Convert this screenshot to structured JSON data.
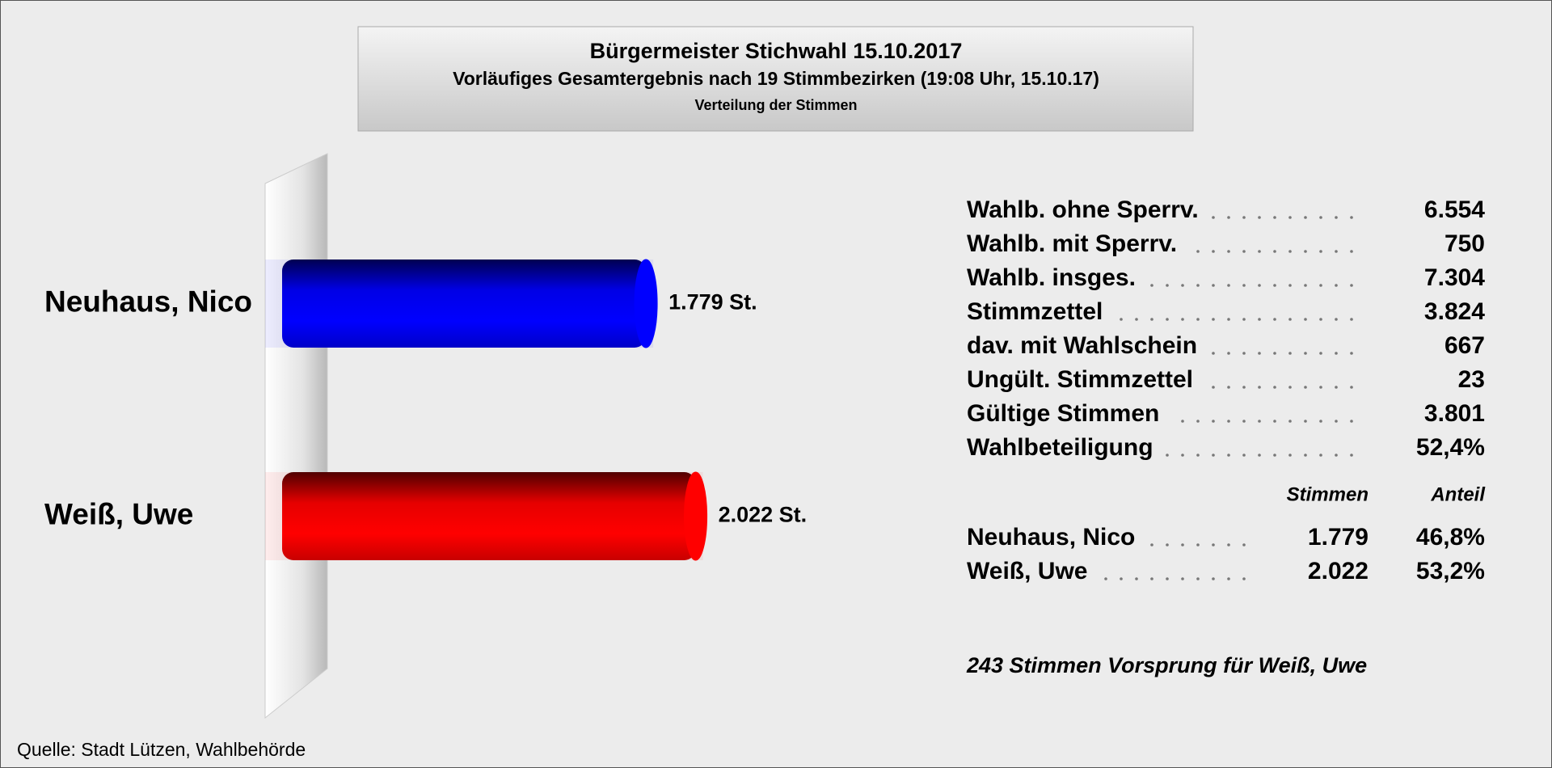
{
  "chart_data": {
    "type": "bar",
    "orientation": "horizontal",
    "title": "Bürgermeister Stichwahl 15.10.2017",
    "subtitle": "Vorläufiges Gesamtergebnis nach 19 Stimmbezirken (19:08 Uhr, 15.10.17)",
    "caption": "Verteilung der Stimmen",
    "categories": [
      "Neuhaus, Nico",
      "Weiß, Uwe"
    ],
    "values": [
      1779,
      2022
    ],
    "value_labels": [
      "1.779 St.",
      "2.022 St."
    ],
    "colors": [
      "#0000ff",
      "#ff0000"
    ]
  },
  "stats": {
    "rows": [
      {
        "label": "Wahlb. ohne Sperrv.",
        "value": "6.554"
      },
      {
        "label": "Wahlb. mit Sperrv.",
        "value": "750"
      },
      {
        "label": "Wahlb. insges.",
        "value": "7.304"
      },
      {
        "label": "Stimmzettel",
        "value": "3.824"
      },
      {
        "label": "dav. mit Wahlschein",
        "value": "667"
      },
      {
        "label": "Ungült. Stimmzettel",
        "value": "23"
      },
      {
        "label": "Gültige Stimmen",
        "value": "3.801"
      },
      {
        "label": "Wahlbeteiligung",
        "value": "52,4%"
      }
    ]
  },
  "results": {
    "headers": [
      "Stimmen",
      "Anteil"
    ],
    "rows": [
      {
        "name": "Neuhaus, Nico",
        "votes": "1.779",
        "share": "46,8%"
      },
      {
        "name": "Weiß, Uwe",
        "votes": "2.022",
        "share": "53,2%"
      }
    ]
  },
  "note": "243 Stimmen Vorsprung für Weiß, Uwe",
  "source": "Quelle: Stadt Lützen, Wahlbehörde"
}
